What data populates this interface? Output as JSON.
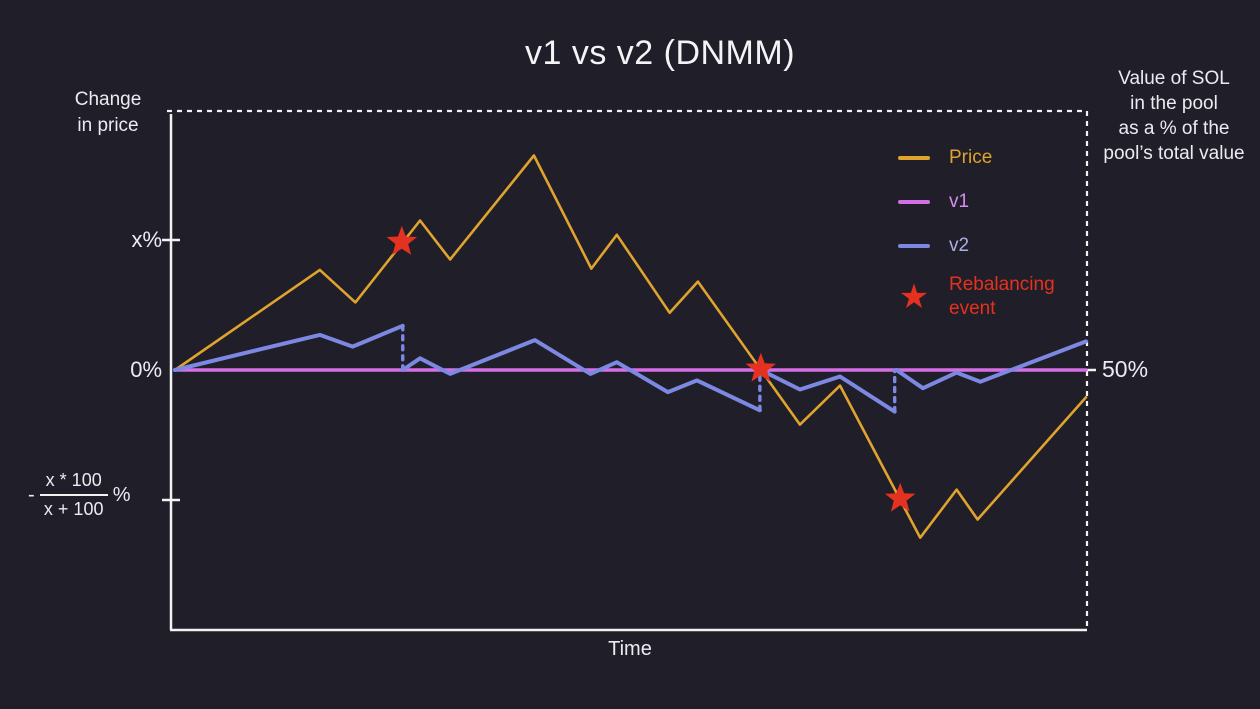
{
  "title": "v1 vs v2 (DNMM)",
  "left_axis": {
    "label_lines": [
      "Change",
      "in price"
    ],
    "fraction_tick": {
      "prefix": "-",
      "numerator": "x * 100",
      "denominator": "x + 100",
      "suffix": "%"
    }
  },
  "right_axis_label_lines": [
    "Value of SOL",
    "in the pool",
    "as a % of the",
    "pool’s total value"
  ],
  "legend": {
    "items": [
      {
        "label": "Price",
        "marker": "line",
        "color_key": "price"
      },
      {
        "label": "v1",
        "marker": "line",
        "color_key": "v1"
      },
      {
        "label": "v2",
        "marker": "line",
        "color_key": "v2"
      },
      {
        "label": "Rebalancing event",
        "label_lines": [
          "Rebalancing",
          "event"
        ],
        "marker": "star",
        "marker_glyph": "★",
        "color_key": "event"
      }
    ]
  },
  "colors": {
    "background": "#201e28",
    "text": "#ecebf1",
    "axis": "#f2f2f2",
    "price": "#dfa32e",
    "v1": "#d46fe5",
    "v1-label": "#d78df0",
    "v2": "#7c88e2",
    "v2-label": "#abaee9",
    "event": "#e5311f"
  },
  "chart_data": {
    "type": "line",
    "title": "v1 vs v2 (DNMM)",
    "x_axis": {
      "label": "Time",
      "range": [
        0,
        100
      ],
      "ticks": []
    },
    "y_axis": {
      "label": "Change in price",
      "range": [
        -2,
        2
      ],
      "ticks": [
        {
          "value": 1,
          "label": "x%",
          "tick_mark": true
        },
        {
          "value": 0,
          "label": "0%",
          "tick_mark": false
        },
        {
          "value": -1,
          "label": "- x * 100 / (x + 100) %",
          "tick_mark": true
        }
      ]
    },
    "right_axis": {
      "label": "Value of SOL in the pool as a % of the pool's total value",
      "ticks": [
        {
          "value": 0,
          "label": "50%"
        }
      ]
    },
    "legend_position": "upper right",
    "grid": false,
    "series": [
      {
        "name": "Price",
        "color_key": "price",
        "points": [
          [
            0,
            0
          ],
          [
            15.9,
            0.77
          ],
          [
            19.8,
            0.52
          ],
          [
            26.9,
            1.15
          ],
          [
            30.2,
            0.85
          ],
          [
            39.4,
            1.65
          ],
          [
            45.7,
            0.78
          ],
          [
            48.5,
            1.04
          ],
          [
            54.3,
            0.44
          ],
          [
            57.4,
            0.68
          ],
          [
            68.6,
            -0.42
          ],
          [
            73.0,
            -0.12
          ],
          [
            81.8,
            -1.29
          ],
          [
            85.8,
            -0.92
          ],
          [
            88.1,
            -1.15
          ],
          [
            100,
            -0.21
          ]
        ]
      },
      {
        "name": "v1",
        "color_key": "v1",
        "points": [
          [
            0,
            0
          ],
          [
            100,
            0
          ]
        ]
      },
      {
        "name": "v2",
        "color_key": "v2",
        "segments": [
          [
            [
              0,
              0
            ],
            [
              15.9,
              0.27
            ],
            [
              19.5,
              0.18
            ],
            [
              25.0,
              0.34
            ]
          ],
          [
            [
              25.0,
              0
            ],
            [
              26.9,
              0.09
            ],
            [
              30.2,
              -0.03
            ],
            [
              39.5,
              0.23
            ],
            [
              45.6,
              -0.03
            ],
            [
              48.5,
              0.06
            ],
            [
              54.1,
              -0.17
            ],
            [
              57.3,
              -0.08
            ],
            [
              64.2,
              -0.31
            ]
          ],
          [
            [
              64.3,
              0
            ],
            [
              68.6,
              -0.15
            ],
            [
              73.0,
              -0.05
            ],
            [
              79.0,
              -0.32
            ]
          ],
          [
            [
              79.2,
              0
            ],
            [
              82.1,
              -0.14
            ],
            [
              85.8,
              -0.02
            ],
            [
              88.4,
              -0.09
            ],
            [
              100,
              0.22
            ]
          ]
        ],
        "resets": [
          {
            "t": 25.0,
            "from": 0.34,
            "to": 0
          },
          {
            "t": 64.2,
            "from": -0.31,
            "to": 0
          },
          {
            "t": 79.0,
            "from": -0.32,
            "to": 0
          }
        ]
      }
    ],
    "rebalancing_events": [
      {
        "t": 24.9,
        "v": 0.985
      },
      {
        "t": 64.3,
        "v": 0.01
      },
      {
        "t": 79.6,
        "v": -0.99
      }
    ]
  }
}
